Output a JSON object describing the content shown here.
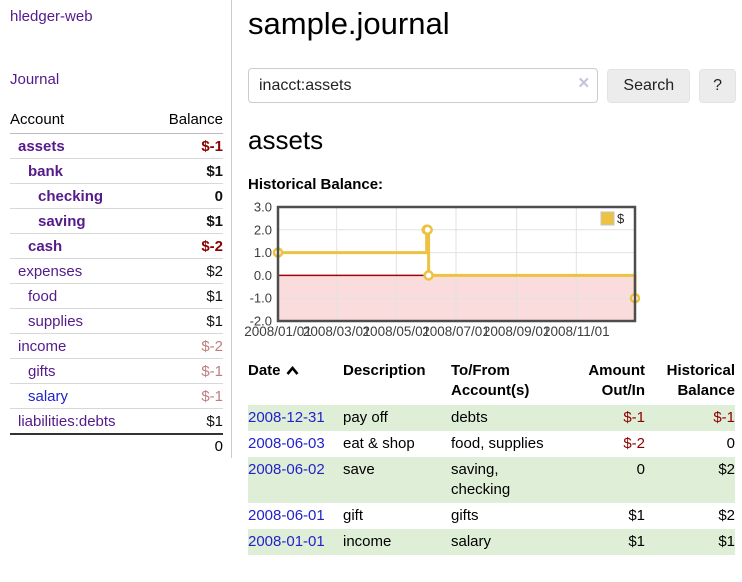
{
  "sidebar": {
    "app_title": "hledger-web",
    "journal_link": "Journal",
    "header": {
      "account": "Account",
      "balance": "Balance"
    },
    "accounts": [
      {
        "name": "assets",
        "balance": "$-1",
        "indent": 0,
        "bold": true,
        "balance_style": "neg"
      },
      {
        "name": "bank",
        "balance": "$1",
        "indent": 1,
        "bold": true,
        "balance_style": "pos"
      },
      {
        "name": "checking",
        "balance": "0",
        "indent": 2,
        "bold": true,
        "balance_style": "pos"
      },
      {
        "name": "saving",
        "balance": "$1",
        "indent": 2,
        "bold": true,
        "balance_style": "pos"
      },
      {
        "name": "cash",
        "balance": "$-2",
        "indent": 1,
        "bold": true,
        "balance_style": "neg"
      },
      {
        "name": "expenses",
        "balance": "$2",
        "indent": 0,
        "bold": false,
        "balance_style": "pos"
      },
      {
        "name": "food",
        "balance": "$1",
        "indent": 1,
        "bold": false,
        "balance_style": "pos"
      },
      {
        "name": "supplies",
        "balance": "$1",
        "indent": 1,
        "bold": false,
        "balance_style": "pos"
      },
      {
        "name": "income",
        "balance": "$-2",
        "indent": 0,
        "bold": false,
        "balance_style": "negmuted"
      },
      {
        "name": "gifts",
        "balance": "$-1",
        "indent": 1,
        "bold": false,
        "balance_style": "negmuted"
      },
      {
        "name": "salary",
        "balance": "$-1",
        "indent": 1,
        "bold": false,
        "balance_style": "negmuted",
        "link_color": "blue"
      },
      {
        "name": "liabilities:debts",
        "balance": "$1",
        "indent": 0,
        "bold": false,
        "balance_style": "pos"
      }
    ],
    "total": "0"
  },
  "main": {
    "title": "sample.journal",
    "search": {
      "value": "inacct:assets",
      "clear_icon": "×",
      "button_label": "Search",
      "help_label": "?"
    },
    "account_heading": "assets",
    "chart_label": "Historical Balance:"
  },
  "chart_data": {
    "type": "line",
    "step": true,
    "title": "Historical Balance of assets",
    "legend": "$",
    "legend_position": "top-right",
    "grid": true,
    "x_domain_days": [
      0,
      365
    ],
    "y_domain": [
      -2,
      3
    ],
    "series": [
      {
        "name": "$",
        "points": [
          {
            "date": "2008-01-01",
            "day": 0,
            "value": 1
          },
          {
            "date": "2008-06-01",
            "day": 152,
            "value": 2
          },
          {
            "date": "2008-06-02",
            "day": 153,
            "value": 2
          },
          {
            "date": "2008-06-03",
            "day": 154,
            "value": 0
          },
          {
            "date": "2008-12-31",
            "day": 365,
            "value": -1
          }
        ]
      }
    ],
    "y_ticks": [
      {
        "v": 3,
        "label": "3.0"
      },
      {
        "v": 2,
        "label": "2.0"
      },
      {
        "v": 1,
        "label": "1.0"
      },
      {
        "v": 0,
        "label": "0.0"
      },
      {
        "v": -1,
        "label": "-1.0"
      },
      {
        "v": -2,
        "label": "-2.0"
      }
    ],
    "x_ticks": [
      {
        "day": 0,
        "label": "2008/01/01"
      },
      {
        "day": 60,
        "label": "2008/03/01"
      },
      {
        "day": 121,
        "label": "2008/05/01"
      },
      {
        "day": 182,
        "label": "2008/07/01"
      },
      {
        "day": 244,
        "label": "2008/09/01"
      },
      {
        "day": 305,
        "label": "2008/11/01"
      }
    ],
    "colors": {
      "line": "#edc240",
      "marker_fill": "#ffffff",
      "negative_region": "#fbdcdc",
      "zero_line": "#9c0508",
      "grid": "#e2e2e2",
      "border": "#4d4d4d",
      "tick_text": "#3d3d3d"
    }
  },
  "register": {
    "headers": [
      "Date",
      "Description",
      "To/From Account(s)",
      "Amount Out/In",
      "Historical Balance"
    ],
    "rows": [
      {
        "date": "2008-12-31",
        "description": "pay off",
        "accounts": "debts",
        "amount": "$-1",
        "amount_neg": true,
        "balance": "$-1",
        "balance_neg": true
      },
      {
        "date": "2008-06-03",
        "description": "eat & shop",
        "accounts": "food, supplies",
        "amount": "$-2",
        "amount_neg": true,
        "balance": "0",
        "balance_neg": false
      },
      {
        "date": "2008-06-02",
        "description": "save",
        "accounts": "saving, checking",
        "amount": "0",
        "amount_neg": false,
        "balance": "$2",
        "balance_neg": false
      },
      {
        "date": "2008-06-01",
        "description": "gift",
        "accounts": "gifts",
        "amount": "$1",
        "amount_neg": false,
        "balance": "$2",
        "balance_neg": false
      },
      {
        "date": "2008-01-01",
        "description": "income",
        "accounts": "salary",
        "amount": "$1",
        "amount_neg": false,
        "balance": "$1",
        "balance_neg": false
      }
    ]
  }
}
